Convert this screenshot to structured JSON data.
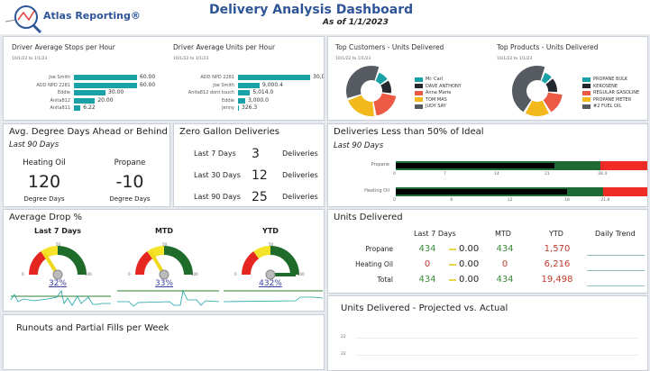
{
  "header": {
    "logo_text": "Atlas Reporting®",
    "title": "Delivery Analysis Dashboard",
    "as_of": "As of 1/1/2023",
    "title_color": "#2e5597"
  },
  "stops": {
    "title": "Driver Average Stops per Hour",
    "range": "10/1/22 to 1/1/23",
    "max": 60,
    "items": [
      {
        "label": "Joe Smith",
        "value": 60,
        "text": "60.00"
      },
      {
        "label": "ADD NPD 2281",
        "value": 60,
        "text": "60.00"
      },
      {
        "label": "Eddie",
        "value": 30,
        "text": "30.00"
      },
      {
        "label": "Anita812",
        "value": 20,
        "text": "20.00"
      },
      {
        "label": "Anita811",
        "value": 6.22,
        "text": "6.22"
      }
    ]
  },
  "units": {
    "title": "Driver Average Units per Hour",
    "range": "10/1/22 to 1/1/23",
    "max": 30001.2,
    "items": [
      {
        "label": "ADD NPD 2281",
        "value": 30001.2,
        "text": "30,001.2"
      },
      {
        "label": "Joe Smith",
        "value": 9000.4,
        "text": "9,000.4"
      },
      {
        "label": "Anita812 dont touch",
        "value": 5014.0,
        "text": "5,014.0"
      },
      {
        "label": "Eddie",
        "value": 3000.0,
        "text": "3,000.0"
      },
      {
        "label": "Jenny",
        "value": 326.3,
        "text": "326.3"
      }
    ]
  },
  "customers": {
    "title": "Top Customers - Units Delivered",
    "range": "10/1/22 to 1/1/23",
    "items": [
      {
        "label": "Mr. Carl",
        "share": 0.1,
        "color": "#1aa1a5"
      },
      {
        "label": "DAVE ANTHONY",
        "share": 0.12,
        "color": "#23292e"
      },
      {
        "label": "Anna Marie",
        "share": 0.2,
        "color": "#ec5a45"
      },
      {
        "label": "TOM MAS",
        "share": 0.22,
        "color": "#f2b81c"
      },
      {
        "label": "JUDY SAY",
        "share": 0.36,
        "color": "#555b60"
      }
    ]
  },
  "products": {
    "title": "Top Products - Units Delivered",
    "range": "10/1/22 to 1/1/23",
    "items": [
      {
        "label": "PROPANE BULK",
        "share": 0.08,
        "color": "#1aa1a5"
      },
      {
        "label": "KEROSENE",
        "share": 0.13,
        "color": "#23292e"
      },
      {
        "label": "REGULAR GASOLINE",
        "share": 0.15,
        "color": "#ec5a45"
      },
      {
        "label": "PROPANE METER",
        "share": 0.17,
        "color": "#f2b81c"
      },
      {
        "label": "#2 FUEL OIL",
        "share": 0.47,
        "color": "#555b60"
      }
    ]
  },
  "degree": {
    "title": "Avg. Degree Days Ahead or Behind",
    "subtitle": "Last 90 Days",
    "cols": [
      {
        "label": "Heating Oil",
        "value": "120",
        "unit": "Degree Days"
      },
      {
        "label": "Propane",
        "value": "-10",
        "unit": "Degree Days"
      }
    ]
  },
  "zero": {
    "title": "Zero Gallon Deliveries",
    "rows": [
      {
        "label": "Last 7 Days",
        "value": "3",
        "unit": "Deliveries"
      },
      {
        "label": "Last 30 Days",
        "value": "12",
        "unit": "Deliveries"
      },
      {
        "label": "Last 90 Days",
        "value": "25",
        "unit": "Deliveries"
      }
    ]
  },
  "less50": {
    "title": "Deliveries Less than 50% of Ideal",
    "subtitle": "Last 90 Days",
    "rows": [
      {
        "label": "Propane",
        "actual": 22,
        "target": 28.4,
        "max": 35,
        "ticks": [
          "0",
          "7",
          "14",
          "21",
          "28.4"
        ]
      },
      {
        "label": "Heating Oil",
        "actual": 18,
        "target": 21.8,
        "max": 26.5,
        "ticks": [
          "0",
          "6",
          "12",
          "18",
          "21.8"
        ]
      }
    ]
  },
  "drop": {
    "title": "Average Drop %",
    "gauges": [
      {
        "label": "Last 7 Days",
        "value": 32,
        "text": "32%"
      },
      {
        "label": "MTD",
        "value": 33,
        "text": "33%"
      },
      {
        "label": "YTD",
        "value": 432,
        "text": "432%"
      }
    ],
    "scale": {
      "min": "0",
      "mid": "50",
      "max": "100"
    }
  },
  "delivered": {
    "title": "Units Delivered",
    "headers": [
      "Last 7 Days",
      "MTD",
      "YTD",
      "Daily Trend"
    ],
    "rows": [
      {
        "label": "Propane",
        "l7": "434",
        "change": "0.00",
        "mtd": "434",
        "ytd": "1,570",
        "l7c": "green"
      },
      {
        "label": "Heating Oil",
        "l7": "0",
        "change": "0.00",
        "mtd": "0",
        "ytd": "6,216",
        "l7c": "red"
      },
      {
        "label": "Total",
        "l7": "434",
        "change": "0.00",
        "mtd": "434",
        "ytd": "19,498",
        "l7c": "green"
      }
    ]
  },
  "runouts": {
    "title": "Runouts and Partial Fills per Week"
  },
  "projected": {
    "title": "Units Delivered - Projected vs. Actual",
    "yticks": [
      "22",
      "22"
    ]
  }
}
